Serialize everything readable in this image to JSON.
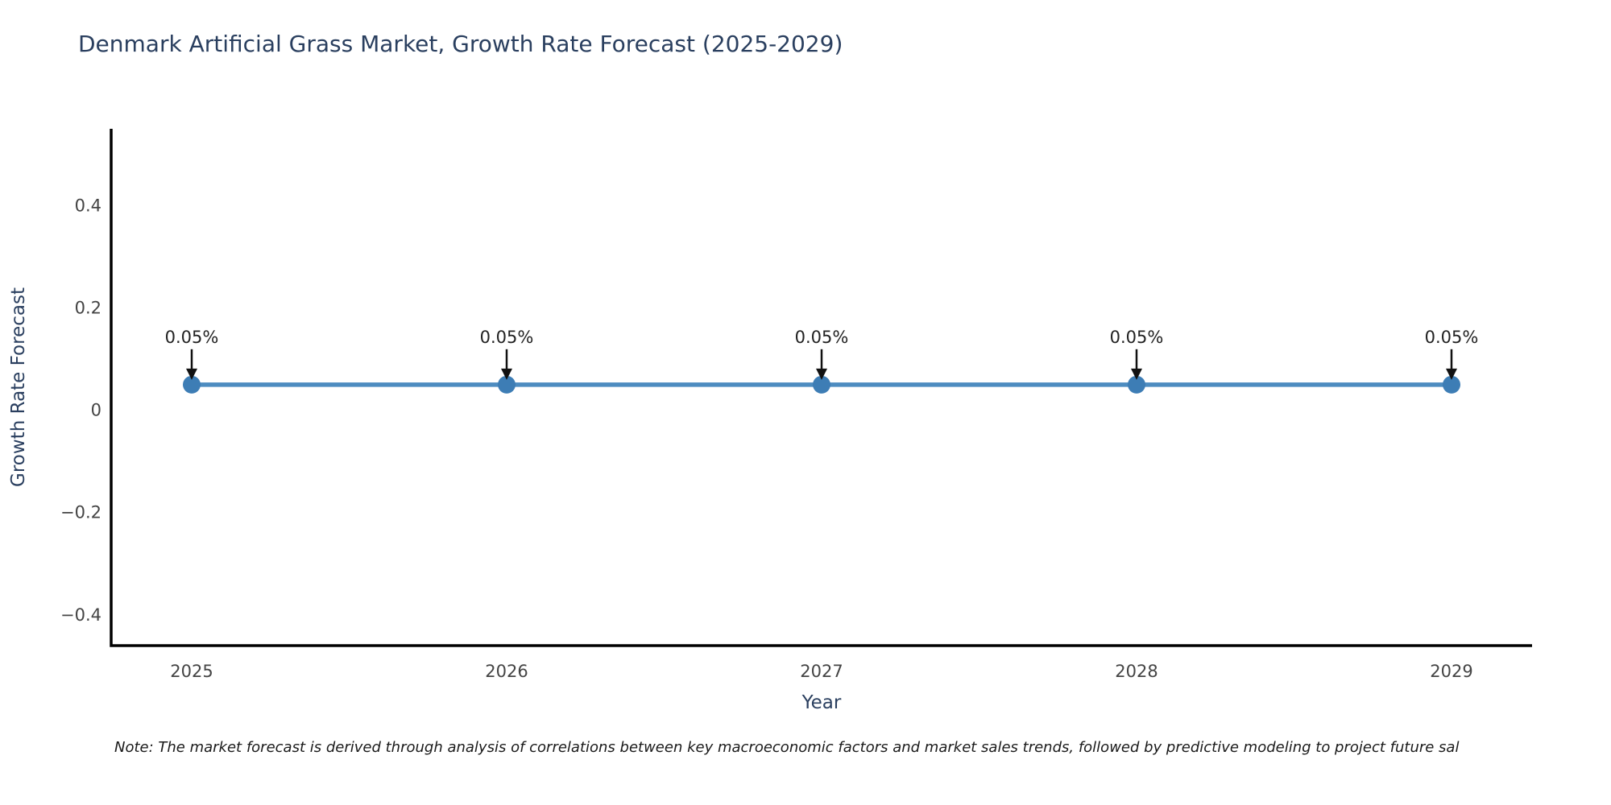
{
  "chart_data": {
    "type": "line",
    "title": "Denmark Artificial Grass Market, Growth Rate Forecast (2025-2029)",
    "categories": [
      "2025",
      "2026",
      "2027",
      "2028",
      "2029"
    ],
    "values": [
      0.05,
      0.05,
      0.05,
      0.05,
      0.05
    ],
    "point_labels": [
      "0.05%",
      "0.05%",
      "0.05%",
      "0.05%",
      "0.05%"
    ],
    "xlabel": "Year",
    "ylabel": "Growth Rate Forecast",
    "yticks": [
      0.4,
      0.2,
      0,
      -0.2,
      -0.4
    ],
    "ytick_labels": [
      "0.4",
      "0.2",
      "0",
      "−0.2",
      "−0.4"
    ],
    "ylim": [
      -0.46,
      0.55
    ],
    "grid": false,
    "legend": false,
    "colors": {
      "line": "#4d8cc0",
      "marker": "#3d7db5",
      "arrow": "#111111",
      "axis": "#000000",
      "title": "#2a3f5f",
      "axis_title": "#2a3f5f",
      "tick": "#444444",
      "annotation": "#222222"
    }
  },
  "note": "Note: The market forecast is derived through analysis of correlations between key macroeconomic factors and market sales trends, followed by predictive modeling to project future sal"
}
